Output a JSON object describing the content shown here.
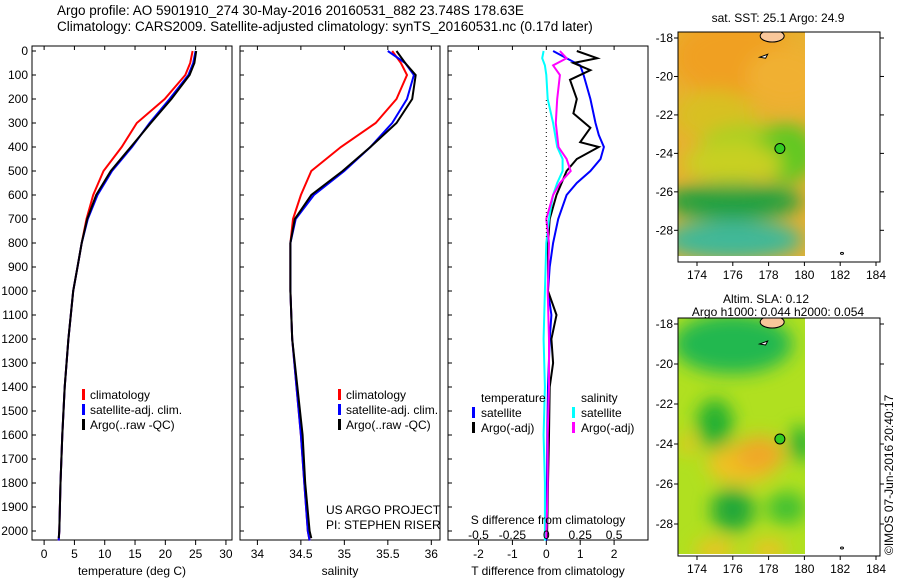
{
  "header": {
    "line1": "Argo profile: AO 5901910_274 30-May-2016 20160531_882 23.748S 178.63E",
    "line2": "Climatology: CARS2009. Satellite-adjusted climatology: synTS_20160531.nc (0.17d later)"
  },
  "colors": {
    "climatology": "#ff0000",
    "satellite": "#0000ff",
    "argo": "#000000",
    "salinity_sat": "#00ffff",
    "salinity_argo": "#ff00ff"
  },
  "chart_data": [
    {
      "type": "line",
      "name": "temperature",
      "xlabel": "temperature (deg C)",
      "xlim": [
        -2,
        31
      ],
      "ylim": [
        2050,
        0
      ],
      "xticks": [
        "0",
        "5",
        "10",
        "15",
        "20",
        "25",
        "30"
      ],
      "yticks": [
        "0",
        "100",
        "200",
        "300",
        "400",
        "500",
        "600",
        "700",
        "800",
        "900",
        "1000",
        "1100",
        "1200",
        "1300",
        "1400",
        "1500",
        "1600",
        "1700",
        "1800",
        "1900",
        "2000"
      ],
      "legend": [
        "climatology",
        "satellite-adj. clim.",
        "Argo(..raw -QC)"
      ],
      "series": [
        {
          "name": "climatology",
          "color": "#ff0000",
          "points": [
            [
              0,
              24.5
            ],
            [
              50,
              24.1
            ],
            [
              100,
              23.3
            ],
            [
              200,
              19.9
            ],
            [
              300,
              15.3
            ],
            [
              400,
              12.8
            ],
            [
              500,
              9.8
            ],
            [
              600,
              8.1
            ],
            [
              700,
              7.0
            ],
            [
              800,
              6.2
            ],
            [
              900,
              5.5
            ],
            [
              1000,
              4.8
            ],
            [
              1200,
              4.0
            ],
            [
              1400,
              3.4
            ],
            [
              1600,
              3.0
            ],
            [
              1800,
              2.7
            ],
            [
              2000,
              2.5
            ],
            [
              2040,
              2.4
            ]
          ]
        },
        {
          "name": "satellite-adj. clim.",
          "color": "#0000ff",
          "points": [
            [
              0,
              25.0
            ],
            [
              50,
              24.6
            ],
            [
              100,
              23.8
            ],
            [
              200,
              20.7
            ],
            [
              300,
              17.4
            ],
            [
              400,
              14.5
            ],
            [
              500,
              11.2
            ],
            [
              600,
              8.8
            ],
            [
              700,
              7.2
            ],
            [
              800,
              6.2
            ],
            [
              900,
              5.5
            ],
            [
              1000,
              4.8
            ],
            [
              1200,
              4.0
            ],
            [
              1400,
              3.4
            ],
            [
              1600,
              3.0
            ],
            [
              1800,
              2.7
            ],
            [
              2000,
              2.5
            ],
            [
              2040,
              2.4
            ]
          ]
        },
        {
          "name": "Argo(..raw -QC)",
          "color": "#000000",
          "points": [
            [
              0,
              25.1
            ],
            [
              50,
              24.8
            ],
            [
              100,
              24.0
            ],
            [
              200,
              21.0
            ],
            [
              300,
              17.6
            ],
            [
              400,
              14.3
            ],
            [
              500,
              11.0
            ],
            [
              600,
              8.6
            ],
            [
              700,
              7.1
            ],
            [
              800,
              6.2
            ],
            [
              900,
              5.5
            ],
            [
              1000,
              4.8
            ],
            [
              1200,
              4.0
            ],
            [
              1400,
              3.4
            ],
            [
              1600,
              3.0
            ],
            [
              1800,
              2.7
            ],
            [
              2000,
              2.5
            ],
            [
              2030,
              2.4
            ]
          ]
        }
      ]
    },
    {
      "type": "line",
      "name": "salinity",
      "xlabel": "salinity",
      "xlim": [
        33.8,
        36.1
      ],
      "ylim": [
        2050,
        0
      ],
      "xticks": [
        "34",
        "34.5",
        "35",
        "35.5",
        "36"
      ],
      "legend": [
        "climatology",
        "satellite-adj. clim.",
        "Argo(..raw -QC)"
      ],
      "annotation": [
        "US ARGO PROJECT",
        "PI: STEPHEN RISER"
      ],
      "series": [
        {
          "name": "climatology",
          "color": "#ff0000",
          "points": [
            [
              0,
              35.55
            ],
            [
              50,
              35.65
            ],
            [
              100,
              35.72
            ],
            [
              200,
              35.6
            ],
            [
              300,
              35.36
            ],
            [
              400,
              34.96
            ],
            [
              500,
              34.62
            ],
            [
              600,
              34.5
            ],
            [
              700,
              34.41
            ],
            [
              800,
              34.38
            ],
            [
              1000,
              34.38
            ],
            [
              1200,
              34.4
            ],
            [
              1400,
              34.45
            ],
            [
              1600,
              34.5
            ],
            [
              1800,
              34.54
            ],
            [
              2000,
              34.58
            ],
            [
              2040,
              34.6
            ]
          ]
        },
        {
          "name": "satellite-adj. clim.",
          "color": "#0000ff",
          "points": [
            [
              0,
              35.5
            ],
            [
              50,
              35.7
            ],
            [
              100,
              35.8
            ],
            [
              200,
              35.72
            ],
            [
              300,
              35.55
            ],
            [
              400,
              35.3
            ],
            [
              500,
              35.0
            ],
            [
              600,
              34.65
            ],
            [
              700,
              34.44
            ],
            [
              800,
              34.38
            ],
            [
              1000,
              34.38
            ],
            [
              1200,
              34.4
            ],
            [
              1400,
              34.45
            ],
            [
              1600,
              34.5
            ],
            [
              1800,
              34.54
            ],
            [
              2000,
              34.58
            ],
            [
              2040,
              34.6
            ]
          ]
        },
        {
          "name": "Argo(..raw -QC)",
          "color": "#000000",
          "points": [
            [
              0,
              35.6
            ],
            [
              50,
              35.7
            ],
            [
              100,
              35.82
            ],
            [
              200,
              35.78
            ],
            [
              300,
              35.6
            ],
            [
              400,
              35.3
            ],
            [
              500,
              34.98
            ],
            [
              600,
              34.62
            ],
            [
              700,
              34.43
            ],
            [
              800,
              34.38
            ],
            [
              1000,
              34.38
            ],
            [
              1200,
              34.4
            ],
            [
              1400,
              34.46
            ],
            [
              1600,
              34.52
            ],
            [
              1800,
              34.55
            ],
            [
              2000,
              34.6
            ],
            [
              2030,
              34.62
            ]
          ]
        }
      ]
    },
    {
      "type": "line",
      "name": "differences",
      "xlabel": "T difference from climatology",
      "x2label": "S difference from climatology",
      "xlim": [
        -2.9,
        3.0
      ],
      "x2lim": [
        -0.725,
        0.75
      ],
      "ylim": [
        2050,
        0
      ],
      "xticks": [
        "-2",
        "-1",
        "0",
        "1",
        "2"
      ],
      "x2ticks": [
        "-0.5",
        "-0.25",
        "0",
        "0.25",
        "0.5"
      ],
      "legend": {
        "temperature": [
          "satellite",
          "Argo(-adj)"
        ],
        "salinity": [
          "satellite",
          "Argo(-adj)"
        ],
        "temperature_title": "temperature",
        "salinity_title": "salinity"
      },
      "series": [
        {
          "name": "T satellite",
          "axis": "T",
          "color": "#0000ff",
          "points": [
            [
              0,
              0.2
            ],
            [
              30,
              0.6
            ],
            [
              60,
              1.0
            ],
            [
              100,
              1.1
            ],
            [
              200,
              1.3
            ],
            [
              300,
              1.45
            ],
            [
              350,
              1.55
            ],
            [
              400,
              1.7
            ],
            [
              450,
              1.6
            ],
            [
              500,
              1.3
            ],
            [
              550,
              0.9
            ],
            [
              600,
              0.6
            ],
            [
              700,
              0.35
            ],
            [
              800,
              0.2
            ],
            [
              900,
              0.1
            ],
            [
              1000,
              0.05
            ],
            [
              1100,
              0.15
            ],
            [
              1200,
              0.1
            ],
            [
              1400,
              0.05
            ],
            [
              1600,
              0.03
            ],
            [
              1800,
              0.02
            ],
            [
              2040,
              0.0
            ]
          ]
        },
        {
          "name": "T Argo(-adj)",
          "axis": "T",
          "color": "#000000",
          "points": [
            [
              0,
              0.9
            ],
            [
              30,
              1.5
            ],
            [
              50,
              0.8
            ],
            [
              80,
              1.3
            ],
            [
              120,
              0.7
            ],
            [
              200,
              0.9
            ],
            [
              260,
              0.8
            ],
            [
              320,
              1.3
            ],
            [
              380,
              1.0
            ],
            [
              400,
              1.55
            ],
            [
              450,
              0.9
            ],
            [
              500,
              0.6
            ],
            [
              550,
              0.45
            ],
            [
              600,
              0.3
            ],
            [
              700,
              0.1
            ],
            [
              800,
              0.05
            ],
            [
              1000,
              0.05
            ],
            [
              1100,
              0.3
            ],
            [
              1200,
              0.15
            ],
            [
              1300,
              0.2
            ],
            [
              1400,
              0.1
            ],
            [
              1600,
              0.08
            ],
            [
              1800,
              0.05
            ],
            [
              2030,
              0.02
            ]
          ]
        },
        {
          "name": "S satellite",
          "axis": "S",
          "color": "#00ffff",
          "points": [
            [
              0,
              -0.02
            ],
            [
              30,
              -0.03
            ],
            [
              60,
              -0.01
            ],
            [
              100,
              0.0
            ],
            [
              200,
              0.01
            ],
            [
              300,
              0.05
            ],
            [
              400,
              0.08
            ],
            [
              450,
              0.12
            ],
            [
              500,
              0.12
            ],
            [
              550,
              0.08
            ],
            [
              600,
              0.05
            ],
            [
              700,
              0.02
            ],
            [
              800,
              0.0
            ],
            [
              1000,
              -0.01
            ],
            [
              1200,
              -0.02
            ],
            [
              1400,
              -0.01
            ],
            [
              1600,
              -0.02
            ],
            [
              1800,
              -0.01
            ],
            [
              2040,
              -0.01
            ]
          ]
        },
        {
          "name": "S Argo(-adj)",
          "axis": "S",
          "color": "#ff00ff",
          "points": [
            [
              0,
              0.1
            ],
            [
              30,
              0.15
            ],
            [
              60,
              0.05
            ],
            [
              100,
              0.1
            ],
            [
              200,
              0.08
            ],
            [
              300,
              0.07
            ],
            [
              400,
              0.09
            ],
            [
              450,
              0.15
            ],
            [
              500,
              0.18
            ],
            [
              550,
              0.1
            ],
            [
              600,
              0.05
            ],
            [
              700,
              0.0
            ],
            [
              800,
              0.02
            ],
            [
              1000,
              0.01
            ],
            [
              1200,
              0.02
            ],
            [
              1400,
              0.02
            ],
            [
              1600,
              0.01
            ],
            [
              1800,
              0.01
            ],
            [
              2030,
              0.0
            ]
          ]
        }
      ]
    }
  ],
  "maps": {
    "sst": {
      "title": "sat. SST: 25.1  Argo: 24.9"
    },
    "sla": {
      "title1": "Altim. SLA: 0.12",
      "title2": "Argo h1000: 0.044 h2000: 0.054"
    },
    "xticks": [
      "174",
      "176",
      "178",
      "180",
      "182",
      "184"
    ],
    "yticks": [
      "-18",
      "-20",
      "-22",
      "-24",
      "-26",
      "-28"
    ],
    "float_position": {
      "lat": -23.748,
      "lon": 178.63
    }
  },
  "credit": "©IMOS 07-Jun-2016 20:40:17"
}
